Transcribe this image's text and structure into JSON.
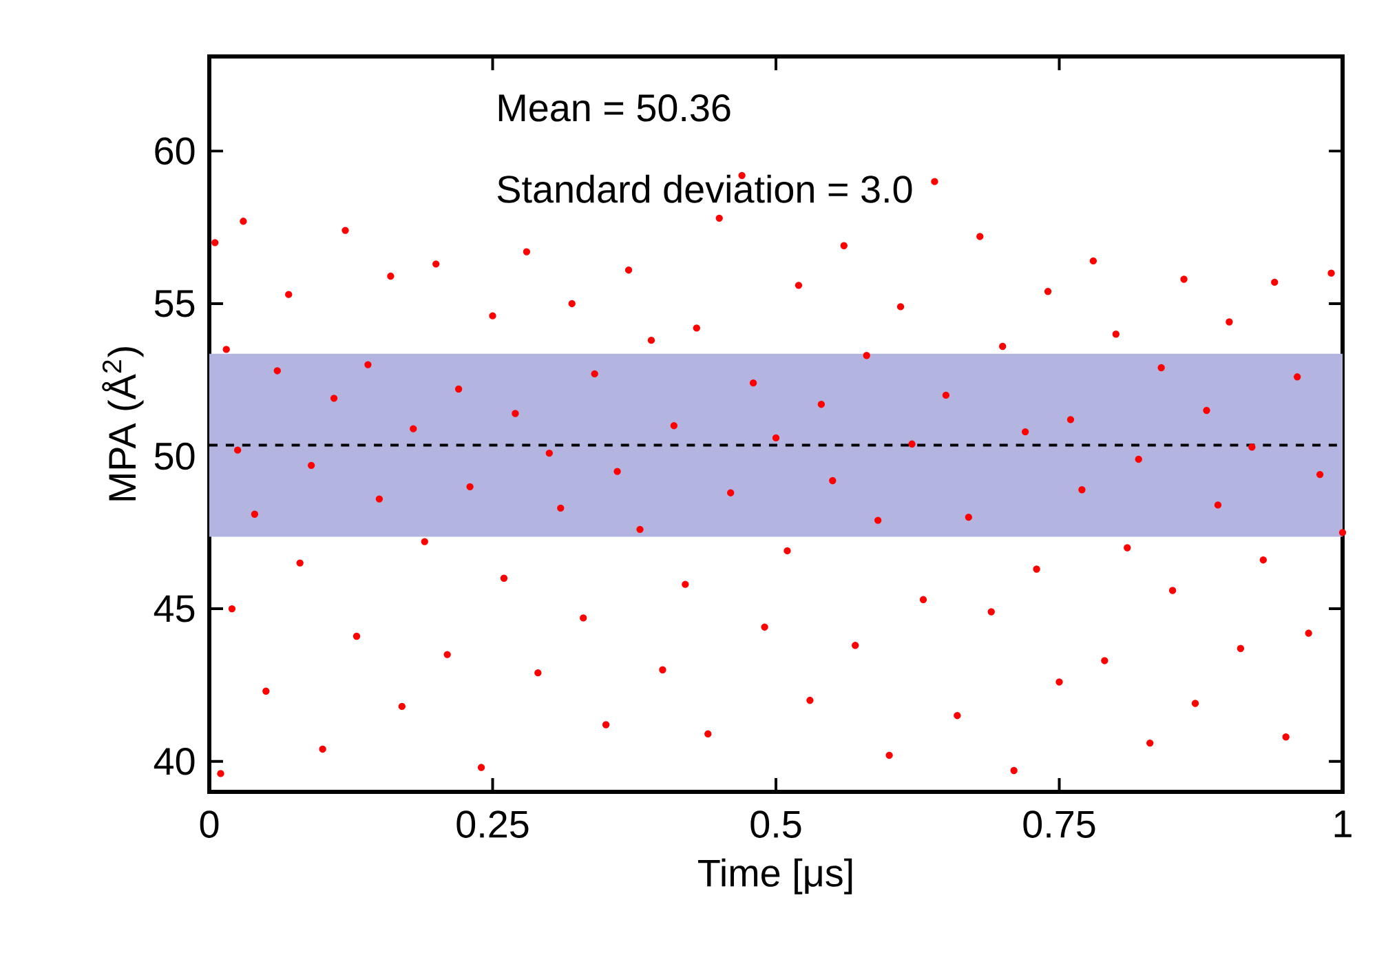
{
  "chart_data": {
    "type": "scatter",
    "xlabel": "Time [μs]",
    "ylabel": "MPA (Å$^{2}$)",
    "annotations": [
      "Mean = 50.36",
      "Standard deviation = 3.0"
    ],
    "xlim": [
      0,
      1
    ],
    "ylim": [
      39,
      63.1
    ],
    "xticks": [
      0,
      0.25,
      0.5,
      0.75,
      1
    ],
    "yticks": [
      40,
      45,
      50,
      55,
      60
    ],
    "marker": "circle",
    "ref_lines": [
      {
        "axis": "y",
        "value": 50.36,
        "color": "#000000",
        "line_style": "dashed"
      }
    ],
    "bands": [
      {
        "axis": "y",
        "from": 47.36,
        "to": 53.36,
        "color": "#b3b5e0"
      }
    ],
    "series": [
      {
        "color": "#ff0000",
        "x": [
          0.005,
          0.01,
          0.015,
          0.02,
          0.025,
          0.03,
          0.04,
          0.05,
          0.06,
          0.07,
          0.08,
          0.09,
          0.1,
          0.11,
          0.12,
          0.13,
          0.14,
          0.15,
          0.16,
          0.17,
          0.18,
          0.19,
          0.2,
          0.21,
          0.22,
          0.23,
          0.24,
          0.25,
          0.26,
          0.27,
          0.28,
          0.29,
          0.3,
          0.31,
          0.32,
          0.33,
          0.34,
          0.35,
          0.36,
          0.37,
          0.38,
          0.39,
          0.4,
          0.41,
          0.42,
          0.43,
          0.44,
          0.45,
          0.46,
          0.47,
          0.48,
          0.49,
          0.5,
          0.51,
          0.52,
          0.53,
          0.54,
          0.55,
          0.56,
          0.57,
          0.58,
          0.59,
          0.6,
          0.61,
          0.62,
          0.63,
          0.64,
          0.65,
          0.66,
          0.67,
          0.68,
          0.69,
          0.7,
          0.71,
          0.72,
          0.73,
          0.74,
          0.75,
          0.76,
          0.77,
          0.78,
          0.79,
          0.8,
          0.81,
          0.82,
          0.83,
          0.84,
          0.85,
          0.86,
          0.87,
          0.88,
          0.89,
          0.9,
          0.91,
          0.92,
          0.93,
          0.94,
          0.95,
          0.96,
          0.97,
          0.98,
          0.99,
          1.0
        ],
        "values": [
          57.0,
          39.6,
          53.5,
          45.0,
          50.2,
          57.7,
          48.1,
          42.3,
          52.8,
          55.3,
          46.5,
          49.7,
          40.4,
          51.9,
          57.4,
          44.1,
          53.0,
          48.6,
          55.9,
          41.8,
          50.9,
          47.2,
          56.3,
          43.5,
          52.2,
          49.0,
          39.8,
          54.6,
          46.0,
          51.4,
          56.7,
          42.9,
          50.1,
          48.3,
          55.0,
          44.7,
          52.7,
          41.2,
          49.5,
          56.1,
          47.6,
          53.8,
          43.0,
          51.0,
          45.8,
          54.2,
          40.9,
          57.8,
          48.8,
          59.2,
          52.4,
          44.4,
          50.6,
          46.9,
          55.6,
          42.0,
          51.7,
          49.2,
          56.9,
          43.8,
          53.3,
          47.9,
          40.2,
          54.9,
          50.4,
          45.3,
          59.0,
          52.0,
          41.5,
          48.0,
          57.2,
          44.9,
          53.6,
          39.7,
          50.8,
          46.3,
          55.4,
          42.6,
          51.2,
          48.9,
          56.4,
          43.3,
          54.0,
          47.0,
          49.9,
          40.6,
          52.9,
          45.6,
          55.8,
          41.9,
          51.5,
          48.4,
          54.4,
          43.7,
          50.3,
          46.6,
          55.7,
          40.8,
          52.6,
          44.2,
          49.4,
          56.0,
          47.5
        ]
      }
    ]
  }
}
